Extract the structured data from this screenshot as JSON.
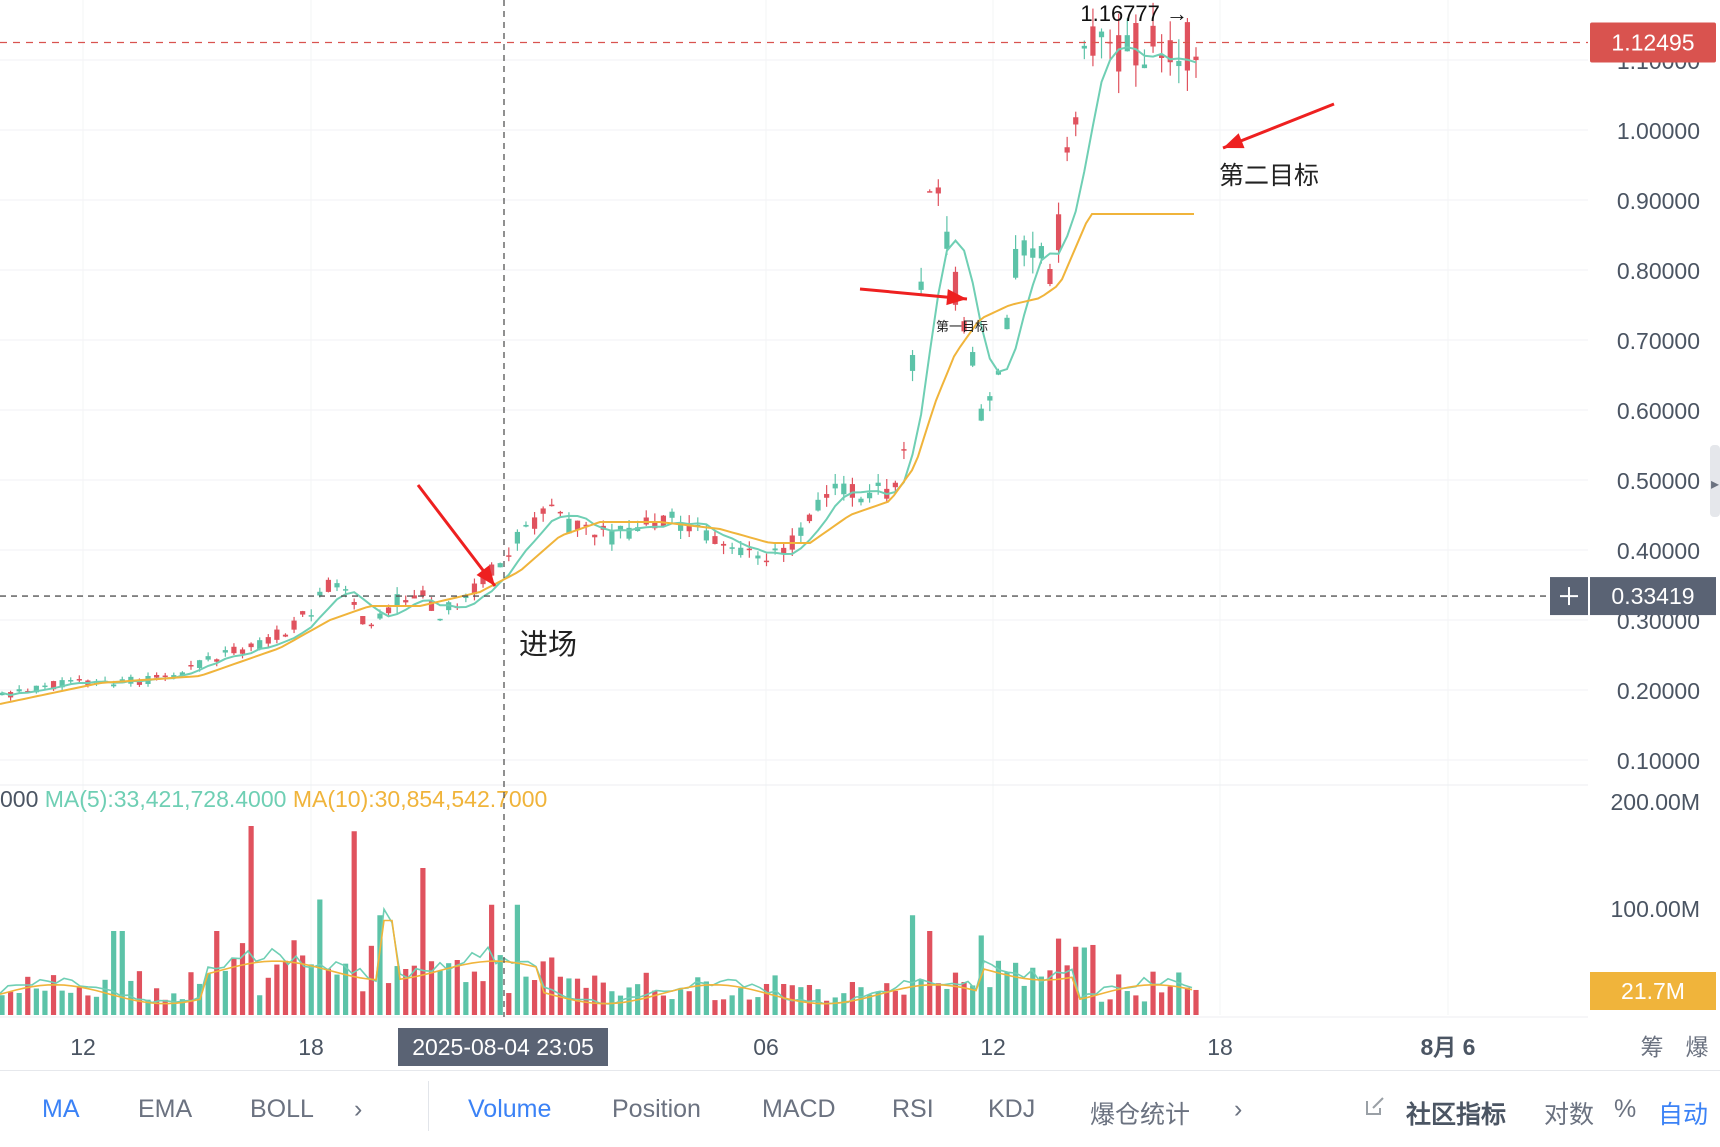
{
  "chart_data": {
    "type": "candlestick",
    "price_axis": {
      "ticks": [
        "1.10000",
        "1.00000",
        "0.90000",
        "0.80000",
        "0.70000",
        "0.60000",
        "0.50000",
        "0.40000",
        "0.30000",
        "0.20000",
        "0.10000"
      ],
      "range": [
        0.05,
        1.2
      ]
    },
    "volume_axis": {
      "ticks": [
        "200.00M",
        "100.00M"
      ]
    },
    "time_axis": {
      "ticks": [
        "12",
        "18",
        "06",
        "12",
        "18",
        "8月 6"
      ],
      "right_labels": [
        "筹",
        "爆"
      ]
    },
    "crosshair": {
      "time_label": "2025-08-04 23:05",
      "price_label": "0.33419",
      "price": 0.33419
    },
    "last_price": {
      "label": "1.12495",
      "value": 1.12495
    },
    "high_marker": {
      "label": "1.16777 →",
      "value": 1.16777
    },
    "volume_last": {
      "label": "21.7M"
    },
    "volume_legend": {
      "prefix": "000",
      "ma5": "MA(5):33,421,728.4000",
      "ma10": "MA(10):30,854,542.7000"
    },
    "annotations": {
      "entry": "进场",
      "first_target": "第一目标",
      "second_target": "第二目标"
    },
    "price_keypoints": [
      [
        0,
        0.19
      ],
      [
        60,
        0.21
      ],
      [
        120,
        0.21
      ],
      [
        180,
        0.22
      ],
      [
        220,
        0.25
      ],
      [
        250,
        0.26
      ],
      [
        280,
        0.28
      ],
      [
        310,
        0.31
      ],
      [
        335,
        0.36
      ],
      [
        350,
        0.33
      ],
      [
        365,
        0.29
      ],
      [
        380,
        0.3
      ],
      [
        400,
        0.33
      ],
      [
        420,
        0.34
      ],
      [
        435,
        0.31
      ],
      [
        458,
        0.32
      ],
      [
        480,
        0.35
      ],
      [
        500,
        0.38
      ],
      [
        520,
        0.42
      ],
      [
        545,
        0.46
      ],
      [
        565,
        0.44
      ],
      [
        590,
        0.42
      ],
      [
        620,
        0.42
      ],
      [
        650,
        0.44
      ],
      [
        680,
        0.44
      ],
      [
        705,
        0.43
      ],
      [
        720,
        0.41
      ],
      [
        750,
        0.4
      ],
      [
        775,
        0.39
      ],
      [
        800,
        0.42
      ],
      [
        815,
        0.46
      ],
      [
        830,
        0.49
      ],
      [
        860,
        0.48
      ],
      [
        890,
        0.48
      ],
      [
        905,
        0.55
      ],
      [
        918,
        0.75
      ],
      [
        932,
        0.92
      ],
      [
        945,
        0.86
      ],
      [
        958,
        0.75
      ],
      [
        970,
        0.68
      ],
      [
        985,
        0.58
      ],
      [
        995,
        0.62
      ],
      [
        1005,
        0.72
      ],
      [
        1020,
        0.84
      ],
      [
        1030,
        0.85
      ],
      [
        1040,
        0.82
      ],
      [
        1050,
        0.79
      ],
      [
        1060,
        0.86
      ],
      [
        1070,
        1.0
      ],
      [
        1082,
        1.08
      ],
      [
        1090,
        1.12
      ]
    ],
    "ma_slow_keypoints": [
      [
        0,
        0.18
      ],
      [
        100,
        0.21
      ],
      [
        200,
        0.22
      ],
      [
        280,
        0.26
      ],
      [
        330,
        0.3
      ],
      [
        370,
        0.32
      ],
      [
        420,
        0.32
      ],
      [
        480,
        0.34
      ],
      [
        520,
        0.37
      ],
      [
        560,
        0.42
      ],
      [
        600,
        0.44
      ],
      [
        660,
        0.44
      ],
      [
        720,
        0.43
      ],
      [
        770,
        0.41
      ],
      [
        810,
        0.41
      ],
      [
        850,
        0.45
      ],
      [
        890,
        0.47
      ],
      [
        915,
        0.52
      ],
      [
        935,
        0.61
      ],
      [
        955,
        0.68
      ],
      [
        980,
        0.73
      ],
      [
        1010,
        0.75
      ],
      [
        1040,
        0.76
      ],
      [
        1060,
        0.78
      ],
      [
        1075,
        0.83
      ],
      [
        1090,
        0.88
      ]
    ],
    "candle_count": 140,
    "volume_spikes": [
      [
        253,
        180
      ],
      [
        353,
        175
      ],
      [
        420,
        140
      ],
      [
        118,
        80
      ],
      [
        516,
        105
      ],
      [
        488,
        105
      ],
      [
        220,
        80
      ],
      [
        318,
        110
      ],
      [
        380,
        95
      ],
      [
        912,
        95
      ],
      [
        932,
        80
      ],
      [
        1075,
        65
      ]
    ],
    "colors": {
      "up": "#5cc3a8",
      "down": "#e0525e",
      "ma_fast": "#6fcfb4",
      "ma_slow": "#f0b43b",
      "last_price_tag": "#d9534f",
      "crosshair_tag": "#5a6374",
      "volume_tag": "#f0b43b",
      "annotation_arrow": "#ee2020",
      "active_tab": "#3b82f6"
    }
  },
  "toolbar": {
    "left_tabs": [
      "MA",
      "EMA",
      "BOLL"
    ],
    "more_left": "›",
    "center_tabs": [
      "Volume",
      "Position",
      "MACD",
      "RSI",
      "KDJ",
      "爆仓统计"
    ],
    "more_center": "›",
    "community": "社区指标",
    "log": "对数",
    "percent": "%",
    "auto": "自动"
  }
}
